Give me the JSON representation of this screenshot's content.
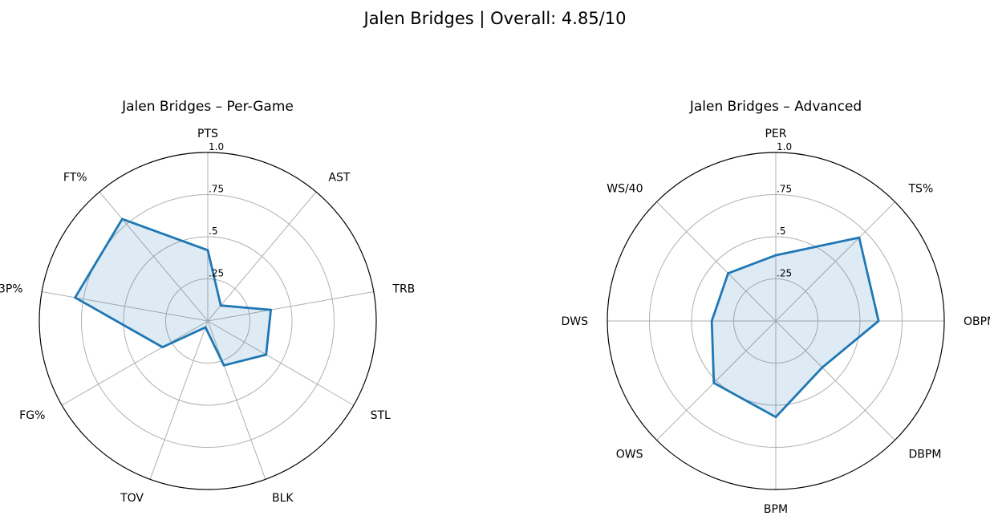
{
  "figure": {
    "title": "Jalen Bridges | Overall: 4.85/10"
  },
  "chart_data": [
    {
      "type": "radar",
      "title": "Jalen Bridges – Per-Game",
      "categories": [
        "PTS",
        "AST",
        "TRB",
        "STL",
        "BLK",
        "TOV",
        "FG%",
        "3P%",
        "FT%"
      ],
      "values": [
        0.42,
        0.12,
        0.38,
        0.4,
        0.28,
        0.04,
        0.31,
        0.8,
        0.79
      ],
      "rlim": [
        0,
        1.0
      ],
      "rticks": [
        0.25,
        0.5,
        0.75,
        1.0
      ],
      "rtick_labels": [
        ".25",
        ".5",
        ".75",
        "1.0"
      ],
      "grid": true,
      "line_color": "#1f77b4",
      "fill_color": "#1f77b4"
    },
    {
      "type": "radar",
      "title": "Jalen Bridges – Advanced",
      "categories": [
        "PER",
        "TS%",
        "OBPM",
        "DBPM",
        "BPM",
        "OWS",
        "DWS",
        "WS/40"
      ],
      "values": [
        0.39,
        0.7,
        0.61,
        0.39,
        0.57,
        0.52,
        0.38,
        0.4
      ],
      "rlim": [
        0,
        1.0
      ],
      "rticks": [
        0.25,
        0.5,
        0.75,
        1.0
      ],
      "rtick_labels": [
        ".25",
        ".5",
        ".75",
        "1.0"
      ],
      "grid": true,
      "line_color": "#1f77b4",
      "fill_color": "#1f77b4"
    }
  ]
}
